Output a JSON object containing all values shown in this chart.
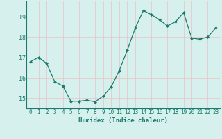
{
  "x": [
    0,
    1,
    2,
    3,
    4,
    5,
    6,
    7,
    8,
    9,
    10,
    11,
    12,
    13,
    14,
    15,
    16,
    17,
    18,
    19,
    20,
    21,
    22,
    23
  ],
  "y": [
    16.8,
    17.0,
    16.7,
    15.8,
    15.6,
    14.85,
    14.85,
    14.9,
    14.82,
    15.1,
    15.55,
    16.35,
    17.35,
    18.45,
    19.3,
    19.1,
    18.85,
    18.55,
    18.75,
    19.2,
    17.95,
    17.9,
    18.0,
    18.45
  ],
  "xlabel": "Humidex (Indice chaleur)",
  "xlim": [
    -0.5,
    23.5
  ],
  "ylim": [
    14.5,
    19.75
  ],
  "yticks": [
    15,
    16,
    17,
    18,
    19
  ],
  "xticks": [
    0,
    1,
    2,
    3,
    4,
    5,
    6,
    7,
    8,
    9,
    10,
    11,
    12,
    13,
    14,
    15,
    16,
    17,
    18,
    19,
    20,
    21,
    22,
    23
  ],
  "line_color": "#1a7a6e",
  "marker": "D",
  "marker_size": 2.0,
  "bg_color": "#d6f0ee",
  "grid_color": "#c8e8e4",
  "tick_color": "#1a7a6e",
  "label_color": "#1a7a6e",
  "font_family": "monospace",
  "tick_fontsize": 5.5,
  "xlabel_fontsize": 6.5
}
